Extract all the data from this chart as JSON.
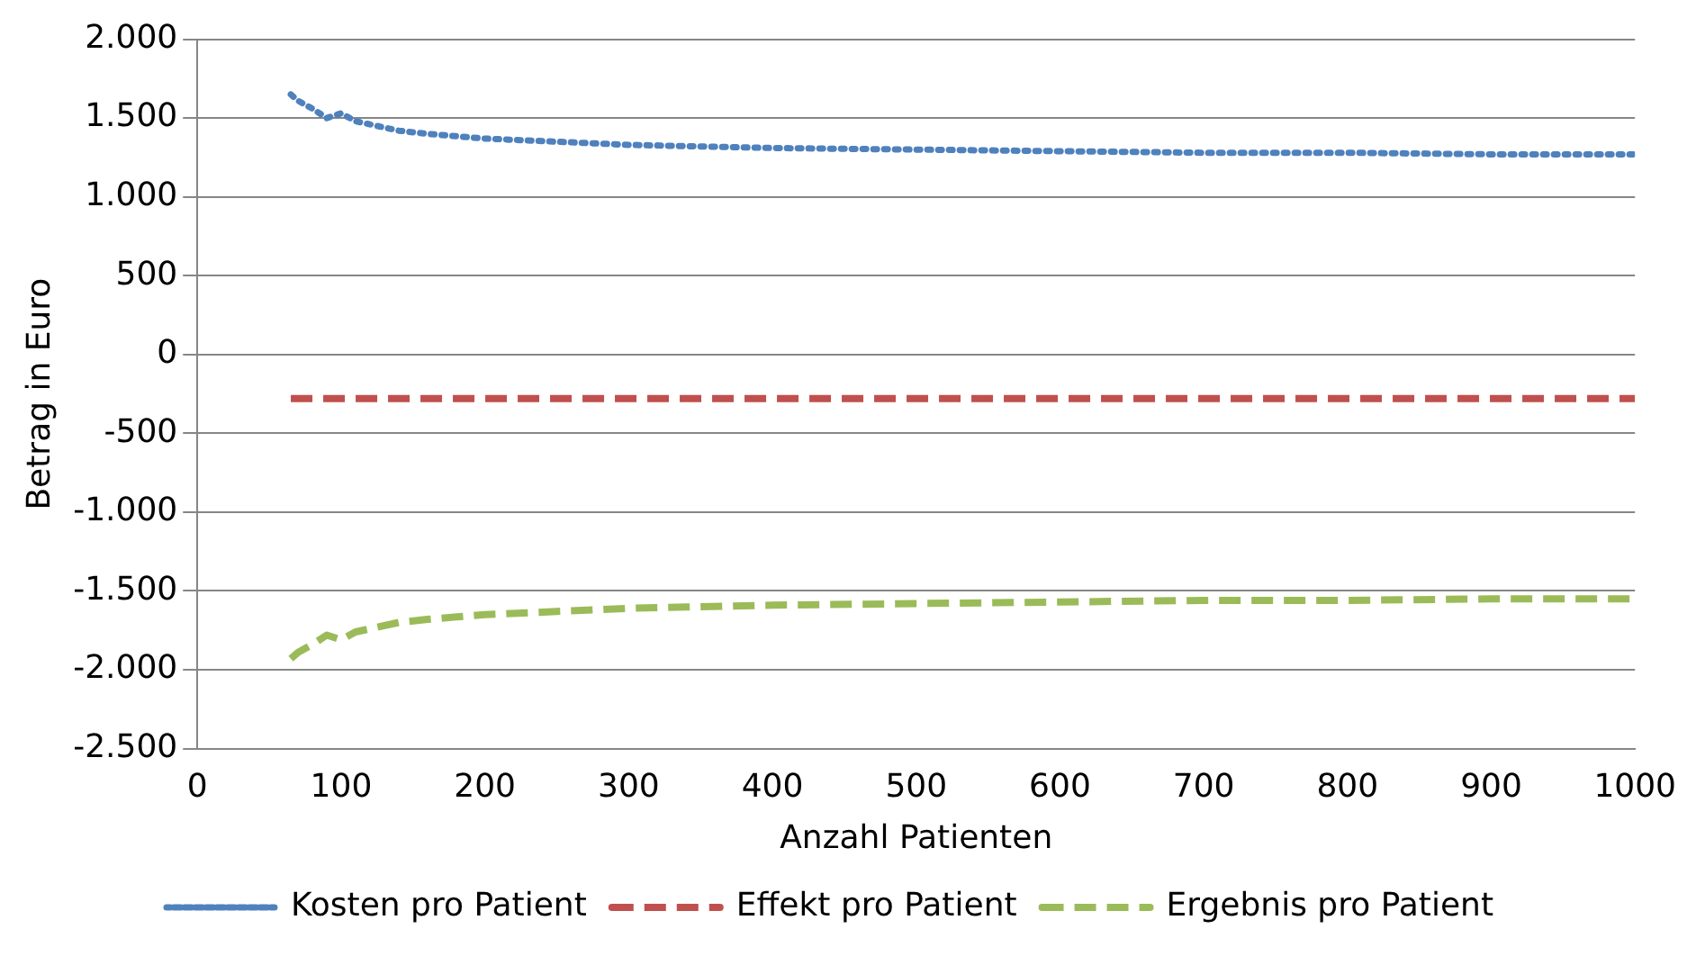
{
  "chart_data": {
    "type": "line",
    "xlabel": "Anzahl Patienten",
    "ylabel": "Betrag in Euro",
    "x": [
      65,
      70,
      80,
      90,
      100,
      110,
      120,
      140,
      160,
      200,
      250,
      300,
      400,
      500,
      600,
      700,
      800,
      900,
      1000
    ],
    "series": [
      {
        "name": "Kosten pro Patient",
        "color": "#4f81bd",
        "line_style": "dotted",
        "values": [
          1650,
          1610,
          1560,
          1500,
          1530,
          1480,
          1460,
          1420,
          1400,
          1370,
          1350,
          1330,
          1310,
          1300,
          1290,
          1280,
          1280,
          1270,
          1270
        ]
      },
      {
        "name": "Effekt pro Patient",
        "color": "#c0504d",
        "line_style": "dashed",
        "values": [
          -280,
          -280,
          -280,
          -280,
          -280,
          -280,
          -280,
          -280,
          -280,
          -280,
          -280,
          -280,
          -280,
          -280,
          -280,
          -280,
          -280,
          -280,
          -280
        ]
      },
      {
        "name": "Ergebnis pro Patient",
        "color": "#9bbb59",
        "line_style": "dashed",
        "values": [
          -1930,
          -1890,
          -1840,
          -1780,
          -1810,
          -1760,
          -1740,
          -1700,
          -1680,
          -1650,
          -1630,
          -1610,
          -1590,
          -1580,
          -1570,
          -1560,
          -1560,
          -1550,
          -1550
        ]
      }
    ],
    "xlim": [
      0,
      1000
    ],
    "xticks": [
      0,
      100,
      200,
      300,
      400,
      500,
      600,
      700,
      800,
      900,
      1000
    ],
    "ylim": [
      -2500,
      2000
    ],
    "yticks": [
      {
        "value": -2500,
        "label": "-2.500"
      },
      {
        "value": -2000,
        "label": "-2.000"
      },
      {
        "value": -1500,
        "label": "-1.500"
      },
      {
        "value": -1000,
        "label": "-1.000"
      },
      {
        "value": -500,
        "label": "-500"
      },
      {
        "value": 0,
        "label": "0"
      },
      {
        "value": 500,
        "label": "500"
      },
      {
        "value": 1000,
        "label": "1.000"
      },
      {
        "value": 1500,
        "label": "1.500"
      },
      {
        "value": 2000,
        "label": "2.000"
      }
    ],
    "grid": "y",
    "legend": "bottom",
    "marker": "none"
  }
}
